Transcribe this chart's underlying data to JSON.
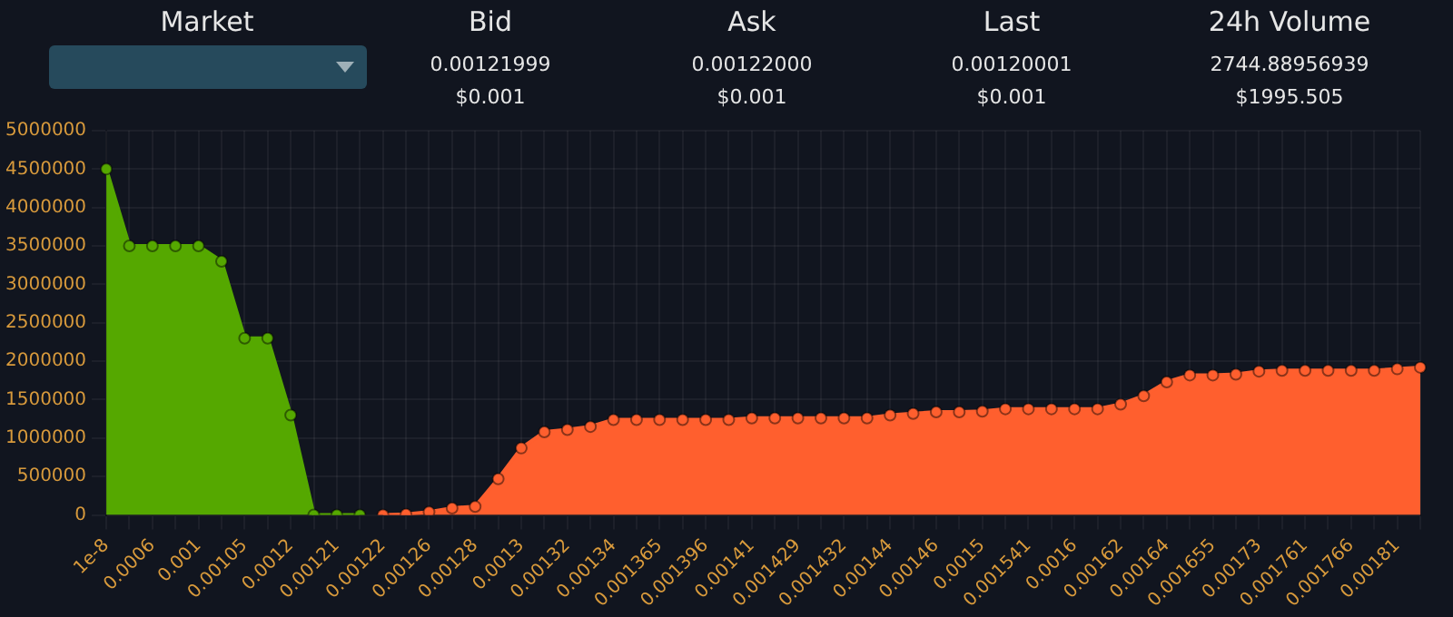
{
  "chart_data": {
    "type": "area",
    "annotations": [
      "Market",
      "Bid",
      "0.00121999",
      "$0.001",
      "Ask",
      "0.00122000",
      "$0.001",
      "Last",
      "0.00120001",
      "$0.001",
      "24h Volume",
      "2744.88956939",
      "$1995.505"
    ],
    "categories": [
      "1e-8",
      null,
      "0.0006",
      null,
      "0.001",
      null,
      "0.00105",
      null,
      "0.0012",
      null,
      "0.00121",
      null,
      "0.00122",
      null,
      "0.00126",
      null,
      "0.00128",
      null,
      "0.0013",
      null,
      "0.00132",
      null,
      "0.00134",
      null,
      "0.001365",
      null,
      "0.001396",
      null,
      "0.00141",
      null,
      "0.001429",
      null,
      "0.001432",
      null,
      "0.00144",
      null,
      "0.00146",
      null,
      "0.0015",
      null,
      "0.001541",
      null,
      "0.0016",
      null,
      "0.00162",
      null,
      "0.00164",
      null,
      "0.001655",
      null,
      "0.00173",
      null,
      "0.001761",
      null,
      "0.001766",
      null,
      "0.00181",
      null
    ],
    "series": [
      {
        "color": "#55a800",
        "values": [
          4500000,
          3500000,
          3500000,
          3500000,
          3500000,
          3300000,
          2300000,
          2300000,
          1300000,
          0,
          0,
          0,
          null,
          null,
          null,
          null,
          null,
          null,
          null,
          null,
          null,
          null,
          null,
          null,
          null,
          null,
          null,
          null,
          null,
          null,
          null,
          null,
          null,
          null,
          null,
          null,
          null,
          null,
          null,
          null,
          null,
          null,
          null,
          null,
          null,
          null,
          null,
          null,
          null,
          null,
          null,
          null,
          null,
          null,
          null,
          null,
          null,
          null
        ]
      },
      {
        "color": "#ff5f2e",
        "values": [
          null,
          null,
          null,
          null,
          null,
          null,
          null,
          null,
          null,
          null,
          null,
          null,
          0,
          10000,
          40000,
          90000,
          110000,
          470000,
          870000,
          1080000,
          1110000,
          1150000,
          1240000,
          1240000,
          1240000,
          1240000,
          1240000,
          1240000,
          1260000,
          1260000,
          1260000,
          1260000,
          1260000,
          1260000,
          1300000,
          1320000,
          1340000,
          1340000,
          1350000,
          1380000,
          1380000,
          1380000,
          1380000,
          1380000,
          1440000,
          1550000,
          1730000,
          1820000,
          1820000,
          1830000,
          1870000,
          1880000,
          1880000,
          1880000,
          1880000,
          1880000,
          1900000,
          1920000
        ]
      }
    ],
    "ylim": [
      0,
      5000000
    ],
    "yticks": [
      0,
      500000,
      1000000,
      1500000,
      2000000,
      2500000,
      3000000,
      3500000,
      4000000,
      4500000,
      5000000
    ],
    "grid": true,
    "legend": false,
    "marker": "circle"
  }
}
